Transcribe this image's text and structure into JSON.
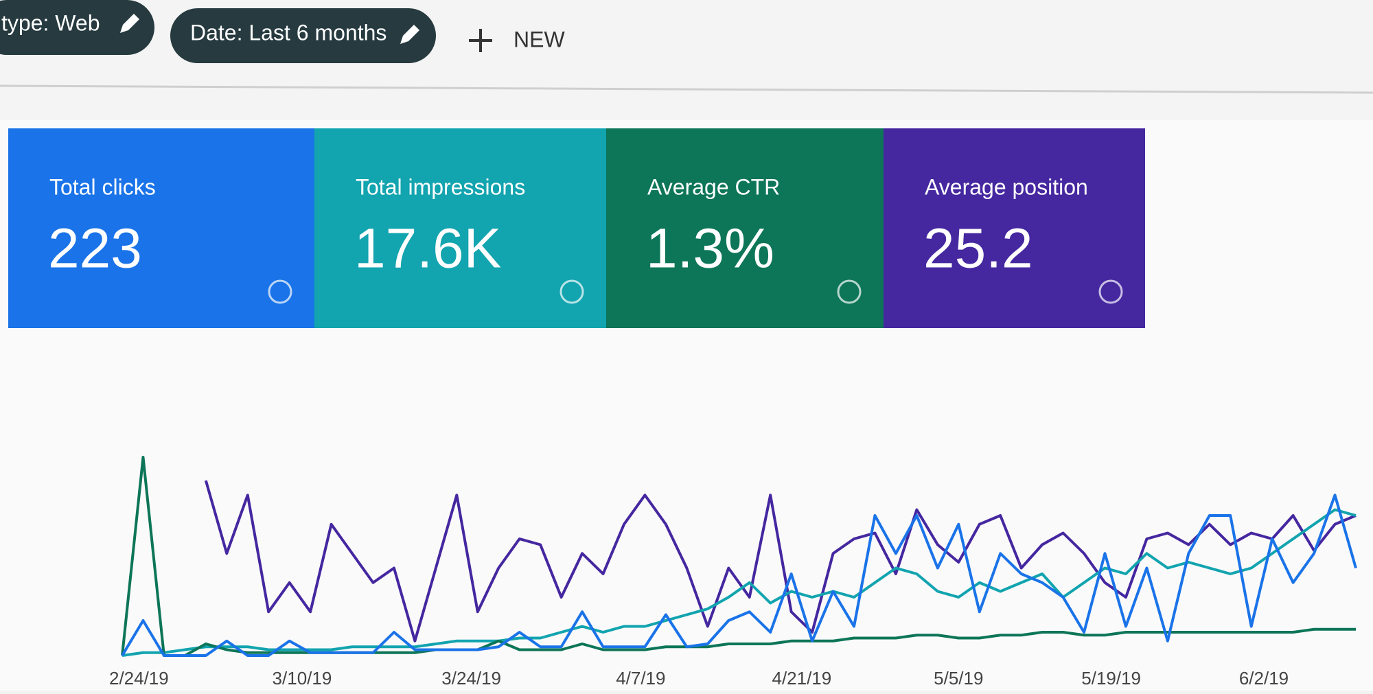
{
  "filters": [
    "type: Web",
    "Date: Last 6 months"
  ],
  "new_button": "NEW",
  "metrics": [
    {
      "label": "Total clicks",
      "value": "223"
    },
    {
      "label": "Total impressions",
      "value": "17.6K"
    },
    {
      "label": "Average CTR",
      "value": "1.3%"
    },
    {
      "label": "Average position",
      "value": "25.2"
    }
  ],
  "chart_data": {
    "type": "line",
    "xlim": [
      0,
      59
    ],
    "ylim": [
      0,
      100
    ],
    "xticks": [
      {
        "value": 0.8,
        "label": "2/24/19"
      },
      {
        "value": 8.6,
        "label": "3/10/19"
      },
      {
        "value": 16.7,
        "label": "3/24/19"
      },
      {
        "value": 24.8,
        "label": "4/7/19"
      },
      {
        "value": 32.5,
        "label": "4/21/19"
      },
      {
        "value": 40,
        "label": "5/5/19"
      },
      {
        "value": 47.3,
        "label": "5/19/19"
      },
      {
        "value": 54.6,
        "label": "6/2/19"
      }
    ],
    "series": [
      {
        "color": "#4527a0",
        "values": [
          null,
          null,
          null,
          null,
          60,
          35,
          55,
          15,
          25,
          15,
          45,
          35,
          25,
          30,
          5,
          30,
          55,
          15,
          30,
          40,
          38,
          20,
          35,
          28,
          45,
          55,
          45,
          30,
          10,
          30,
          20,
          55,
          15,
          8,
          35,
          40,
          42,
          28,
          50,
          38,
          32,
          45,
          48,
          30,
          38,
          42,
          35,
          25,
          20,
          40,
          42,
          38,
          45,
          38,
          42,
          40,
          48,
          36,
          45,
          48
        ]
      },
      {
        "color": "#12a4af",
        "values": [
          0,
          1,
          1,
          2,
          3,
          3,
          3,
          2,
          2,
          2,
          2,
          3,
          3,
          3,
          3,
          4,
          5,
          5,
          5,
          6,
          6,
          8,
          10,
          8,
          10,
          10,
          12,
          14,
          16,
          20,
          25,
          18,
          22,
          20,
          22,
          20,
          25,
          30,
          28,
          22,
          20,
          25,
          22,
          25,
          28,
          20,
          25,
          30,
          28,
          35,
          30,
          32,
          30,
          28,
          30,
          35,
          40,
          45,
          50,
          48
        ]
      },
      {
        "color": "#0d7558",
        "values": [
          0,
          68,
          0,
          0,
          4,
          2,
          1,
          1,
          1,
          1,
          1,
          1,
          1,
          1,
          1,
          2,
          2,
          2,
          5,
          2,
          2,
          2,
          4,
          2,
          2,
          2,
          3,
          3,
          3,
          4,
          4,
          4,
          5,
          5,
          5,
          6,
          6,
          6,
          7,
          7,
          6,
          6,
          7,
          7,
          8,
          8,
          7,
          7,
          8,
          8,
          8,
          8,
          8,
          8,
          8,
          8,
          8,
          9,
          9,
          9
        ]
      },
      {
        "color": "#1a73e8",
        "values": [
          0,
          12,
          0,
          0,
          0,
          5,
          0,
          0,
          5,
          1,
          1,
          1,
          1,
          8,
          2,
          2,
          2,
          2,
          3,
          8,
          3,
          3,
          15,
          3,
          3,
          3,
          14,
          3,
          4,
          12,
          15,
          8,
          28,
          5,
          22,
          10,
          48,
          35,
          48,
          30,
          45,
          15,
          35,
          28,
          25,
          20,
          8,
          35,
          10,
          30,
          5,
          35,
          48,
          48,
          10,
          40,
          25,
          35,
          55,
          30
        ]
      }
    ]
  }
}
